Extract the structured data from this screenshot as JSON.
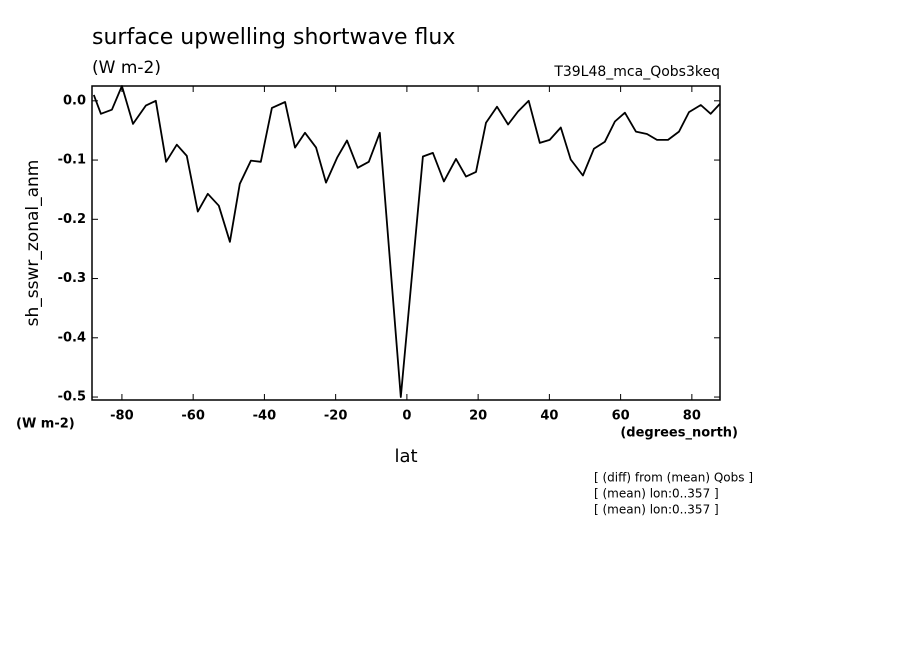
{
  "chart_data": {
    "type": "line",
    "title": "surface upwelling shortwave flux",
    "subtitle": "(W m-2)",
    "run_label": "T39L48_mca_Qobs3keq",
    "y_label": "sh_sswr_zonal_anm",
    "y_units": "(W m-2)",
    "x_units": "(degrees_north)",
    "x_label": "lat",
    "notes": [
      "[ (diff) from (mean) Qobs ]",
      "[ (mean) lon:0..357 ]",
      "[ (mean) lon:0..357 ]"
    ],
    "color": "#000000",
    "x": [
      -87.9,
      -85.9,
      -82.8,
      -80.0,
      -76.9,
      -73.3,
      -70.5,
      -67.6,
      -64.6,
      -61.8,
      -58.7,
      -55.9,
      -52.8,
      -49.7,
      -46.9,
      -43.8,
      -41.0,
      -37.9,
      -34.2,
      -31.4,
      -28.6,
      -25.5,
      -22.7,
      -19.6,
      -16.8,
      -13.8,
      -10.7,
      -7.6,
      -1.7,
      4.5,
      7.3,
      10.4,
      13.8,
      16.6,
      19.4,
      22.2,
      25.3,
      28.4,
      31.2,
      34.2,
      37.3,
      40.1,
      43.2,
      46.0,
      49.4,
      52.5,
      55.6,
      58.4,
      61.2,
      64.3,
      67.4,
      70.2,
      73.3,
      76.4,
      79.2,
      82.5,
      85.3,
      87.9
    ],
    "values": [
      0.01,
      -0.022,
      -0.015,
      0.025,
      -0.039,
      -0.008,
      0.0,
      -0.103,
      -0.074,
      -0.093,
      -0.187,
      -0.157,
      -0.177,
      -0.238,
      -0.14,
      -0.101,
      -0.103,
      -0.012,
      -0.002,
      -0.079,
      -0.054,
      -0.079,
      -0.138,
      -0.096,
      -0.067,
      -0.113,
      -0.103,
      -0.054,
      -0.5,
      -0.094,
      -0.088,
      -0.136,
      -0.098,
      -0.128,
      -0.12,
      -0.037,
      -0.01,
      -0.04,
      -0.018,
      0.0,
      -0.071,
      -0.066,
      -0.045,
      -0.099,
      -0.126,
      -0.081,
      -0.069,
      -0.035,
      -0.02,
      -0.052,
      -0.056,
      -0.066,
      -0.066,
      -0.052,
      -0.019,
      -0.007,
      -0.022,
      -0.005
    ],
    "xlim": [
      -88.4,
      87.9
    ],
    "ylim": [
      -0.505,
      0.025
    ],
    "xticks": [
      -80,
      -60,
      -40,
      -20,
      0,
      20,
      40,
      60,
      80
    ],
    "yticks": [
      {
        "value": 0,
        "label": "0.0"
      },
      -0.1,
      -0.2,
      -0.3,
      -0.4,
      -0.5
    ]
  }
}
